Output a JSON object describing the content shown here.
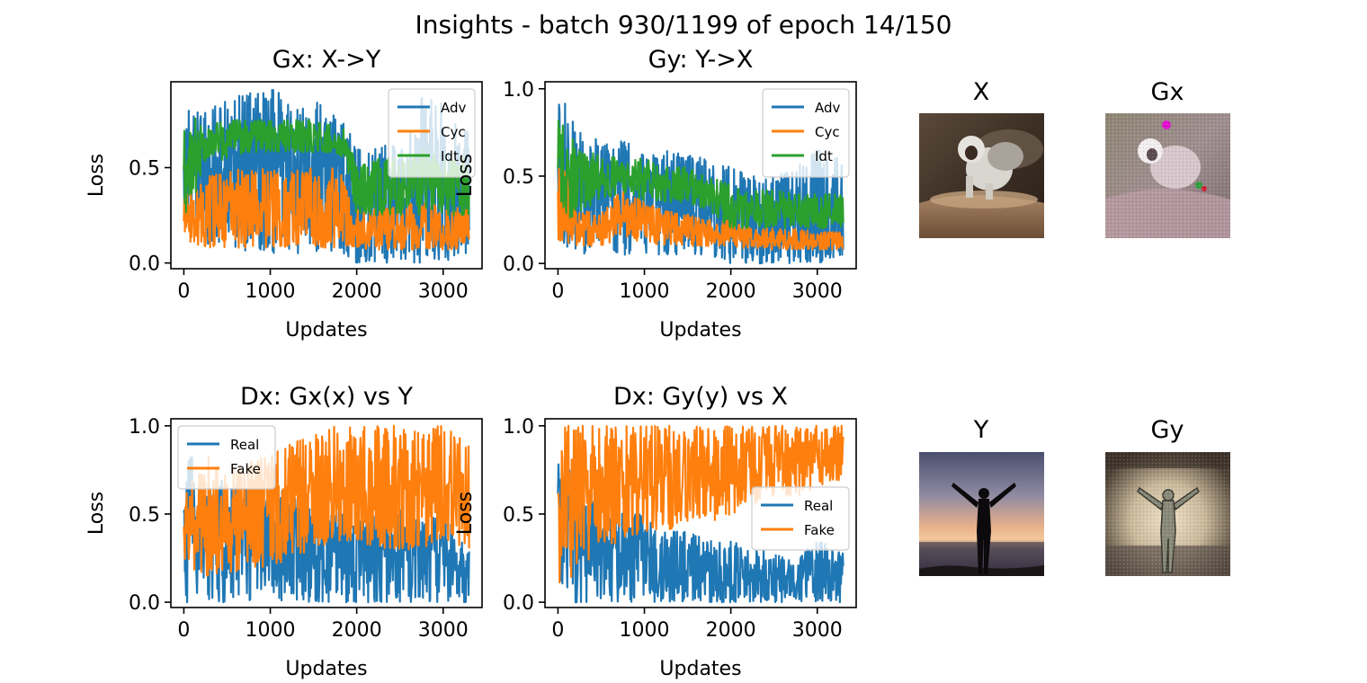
{
  "figure": {
    "suptitle": "Insights - batch 930/1199 of epoch 14/150"
  },
  "colors": {
    "blue": "#1f77b4",
    "orange": "#ff7f0e",
    "green": "#2ca02c"
  },
  "chart_data": [
    {
      "type": "line",
      "title": "Gx: X->Y",
      "xlabel": "Updates",
      "ylabel": "Loss",
      "xlim": [
        -150,
        3450
      ],
      "ylim": [
        -0.03,
        0.95
      ],
      "xticks": [
        0,
        1000,
        2000,
        3000
      ],
      "yticks": [
        0.0,
        0.5
      ],
      "legend_position": "upper right",
      "series": [
        {
          "name": "Adv",
          "color": "#1f77b4",
          "x": [
            0,
            250,
            500,
            750,
            1000,
            1250,
            1500,
            1750,
            1850,
            2000,
            2250,
            2500,
            2750,
            3000,
            3300
          ],
          "y_low": [
            0.25,
            0.1,
            0.1,
            0.05,
            0.05,
            0.05,
            0.05,
            0.05,
            0.05,
            0.0,
            0.0,
            0.0,
            0.0,
            0.0,
            0.05
          ],
          "y_high": [
            0.8,
            0.8,
            0.85,
            0.9,
            0.92,
            0.9,
            0.85,
            0.8,
            0.78,
            0.6,
            0.6,
            0.65,
            0.9,
            0.85,
            0.7
          ]
        },
        {
          "name": "Cyc",
          "color": "#ff7f0e",
          "x": [
            0,
            250,
            500,
            750,
            1000,
            1250,
            1500,
            1750,
            1850,
            2000,
            2250,
            2500,
            2750,
            3000,
            3300
          ],
          "y_low": [
            0.1,
            0.08,
            0.08,
            0.08,
            0.08,
            0.08,
            0.08,
            0.08,
            0.08,
            0.07,
            0.07,
            0.07,
            0.07,
            0.07,
            0.07
          ],
          "y_high": [
            0.35,
            0.45,
            0.48,
            0.5,
            0.5,
            0.48,
            0.5,
            0.5,
            0.45,
            0.28,
            0.28,
            0.3,
            0.32,
            0.3,
            0.28
          ]
        },
        {
          "name": "Idt",
          "color": "#2ca02c",
          "x": [
            0,
            250,
            500,
            750,
            1000,
            1250,
            1500,
            1750,
            1850,
            2000,
            2250,
            2500,
            2750,
            3000,
            3300
          ],
          "y_low": [
            0.2,
            0.5,
            0.55,
            0.58,
            0.58,
            0.58,
            0.58,
            0.58,
            0.55,
            0.25,
            0.25,
            0.25,
            0.25,
            0.25,
            0.25
          ],
          "y_high": [
            0.8,
            0.72,
            0.75,
            0.75,
            0.75,
            0.75,
            0.75,
            0.72,
            0.72,
            0.5,
            0.55,
            0.55,
            0.6,
            0.55,
            0.55
          ]
        }
      ]
    },
    {
      "type": "line",
      "title": "Gy: Y->X",
      "xlabel": "Updates",
      "ylabel": "Loss",
      "xlim": [
        -150,
        3450
      ],
      "ylim": [
        -0.03,
        1.04
      ],
      "xticks": [
        0,
        1000,
        2000,
        3000
      ],
      "yticks": [
        0.0,
        0.5,
        1.0
      ],
      "legend_position": "upper right",
      "series": [
        {
          "name": "Adv",
          "color": "#1f77b4",
          "x": [
            0,
            250,
            500,
            750,
            1000,
            1250,
            1500,
            1750,
            2000,
            2250,
            2500,
            2750,
            3000,
            3300
          ],
          "y_low": [
            0.1,
            0.05,
            0.05,
            0.05,
            0.05,
            0.05,
            0.05,
            0.05,
            0.0,
            0.0,
            0.0,
            0.0,
            0.0,
            0.05
          ],
          "y_high": [
            1.0,
            0.75,
            0.7,
            0.7,
            0.65,
            0.65,
            0.62,
            0.6,
            0.55,
            0.5,
            0.5,
            0.55,
            0.65,
            0.6
          ]
        },
        {
          "name": "Cyc",
          "color": "#ff7f0e",
          "x": [
            0,
            250,
            500,
            750,
            1000,
            1250,
            1500,
            1750,
            2000,
            2250,
            2500,
            2750,
            3000,
            3300
          ],
          "y_low": [
            0.1,
            0.1,
            0.1,
            0.15,
            0.12,
            0.1,
            0.1,
            0.1,
            0.1,
            0.08,
            0.08,
            0.08,
            0.08,
            0.08
          ],
          "y_high": [
            0.7,
            0.3,
            0.3,
            0.42,
            0.35,
            0.3,
            0.28,
            0.25,
            0.25,
            0.2,
            0.2,
            0.2,
            0.18,
            0.18
          ]
        },
        {
          "name": "Idt",
          "color": "#2ca02c",
          "x": [
            0,
            250,
            500,
            750,
            1000,
            1250,
            1500,
            1750,
            2000,
            2250,
            2500,
            2750,
            3000,
            3300
          ],
          "y_low": [
            0.2,
            0.3,
            0.35,
            0.4,
            0.35,
            0.35,
            0.35,
            0.3,
            0.2,
            0.2,
            0.2,
            0.2,
            0.2,
            0.2
          ],
          "y_high": [
            0.85,
            0.65,
            0.62,
            0.6,
            0.6,
            0.55,
            0.55,
            0.5,
            0.45,
            0.42,
            0.42,
            0.4,
            0.4,
            0.4
          ]
        }
      ]
    },
    {
      "type": "line",
      "title": "Dx: Gx(x) vs Y",
      "xlabel": "Updates",
      "ylabel": "Loss",
      "xlim": [
        -150,
        3450
      ],
      "ylim": [
        -0.03,
        1.04
      ],
      "xticks": [
        0,
        1000,
        2000,
        3000
      ],
      "yticks": [
        0.0,
        0.5,
        1.0
      ],
      "legend_position": "upper left",
      "series": [
        {
          "name": "Real",
          "color": "#1f77b4",
          "x": [
            0,
            250,
            500,
            750,
            1000,
            1250,
            1500,
            1750,
            2000,
            2250,
            2500,
            2750,
            3000,
            3300
          ],
          "y_low": [
            0.0,
            0.0,
            0.0,
            0.0,
            0.0,
            0.0,
            0.0,
            0.0,
            0.0,
            0.0,
            0.0,
            0.0,
            0.0,
            0.0
          ],
          "y_high": [
            0.9,
            0.7,
            0.7,
            0.65,
            0.7,
            0.6,
            0.55,
            0.55,
            0.45,
            0.5,
            0.55,
            0.45,
            0.5,
            0.3
          ]
        },
        {
          "name": "Fake",
          "color": "#ff7f0e",
          "x": [
            0,
            250,
            500,
            750,
            1000,
            1250,
            1500,
            1750,
            2000,
            2250,
            2500,
            2750,
            3000,
            3300
          ],
          "y_low": [
            0.2,
            0.15,
            0.15,
            0.2,
            0.2,
            0.25,
            0.3,
            0.35,
            0.35,
            0.3,
            0.3,
            0.3,
            0.35,
            0.3
          ],
          "y_high": [
            0.6,
            0.85,
            0.75,
            0.8,
            0.85,
            0.9,
            0.95,
            1.0,
            1.0,
            1.0,
            1.0,
            1.0,
            1.0,
            0.95
          ]
        }
      ]
    },
    {
      "type": "line",
      "title": "Dx: Gy(y) vs X",
      "xlabel": "Updates",
      "ylabel": "Loss",
      "xlim": [
        -150,
        3450
      ],
      "ylim": [
        -0.03,
        1.04
      ],
      "xticks": [
        0,
        1000,
        2000,
        3000
      ],
      "yticks": [
        0.0,
        0.5,
        1.0
      ],
      "legend_position": "center right",
      "series": [
        {
          "name": "Real",
          "color": "#1f77b4",
          "x": [
            0,
            250,
            500,
            750,
            1000,
            1250,
            1500,
            1750,
            2000,
            2250,
            2500,
            2750,
            3000,
            3300
          ],
          "y_low": [
            0.0,
            0.0,
            0.0,
            0.0,
            0.0,
            0.0,
            0.0,
            0.0,
            0.0,
            0.0,
            0.0,
            0.0,
            0.0,
            0.0
          ],
          "y_high": [
            1.0,
            0.6,
            0.55,
            0.5,
            0.5,
            0.4,
            0.4,
            0.35,
            0.35,
            0.3,
            0.3,
            0.25,
            0.35,
            0.3
          ]
        },
        {
          "name": "Fake",
          "color": "#ff7f0e",
          "x": [
            0,
            250,
            500,
            750,
            1000,
            1250,
            1500,
            1750,
            2000,
            2250,
            2500,
            2750,
            3000,
            3300
          ],
          "y_low": [
            0.0,
            0.2,
            0.3,
            0.35,
            0.4,
            0.4,
            0.45,
            0.45,
            0.5,
            0.55,
            0.6,
            0.6,
            0.65,
            0.7
          ],
          "y_high": [
            1.0,
            1.0,
            1.0,
            1.0,
            1.0,
            1.0,
            1.0,
            1.0,
            1.0,
            1.0,
            1.0,
            1.0,
            1.0,
            1.0
          ]
        }
      ]
    }
  ],
  "images": [
    {
      "title": "X"
    },
    {
      "title": "Gx"
    },
    {
      "title": "Y"
    },
    {
      "title": "Gy"
    }
  ]
}
